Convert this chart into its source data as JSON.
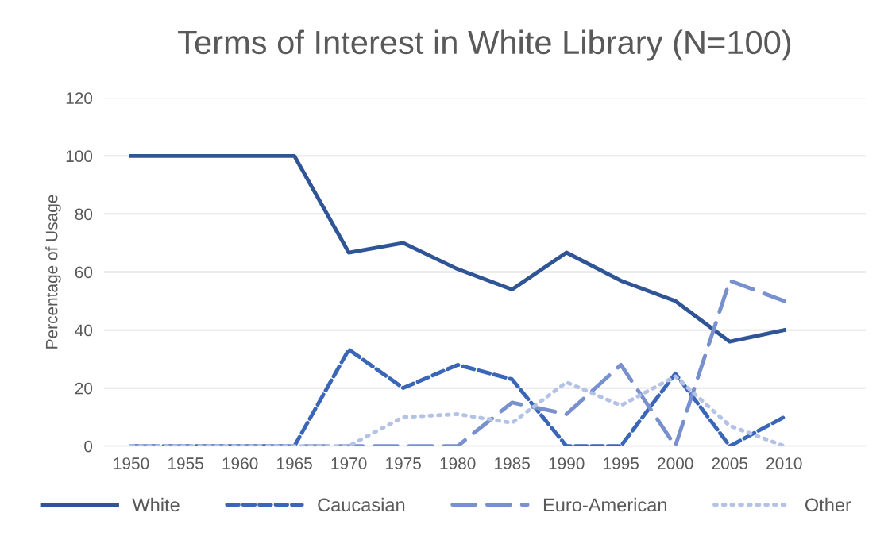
{
  "chart_data": {
    "type": "line",
    "title": "Terms of Interest in White Library (N=100)",
    "ylabel": "Percentage of Usage",
    "categories": [
      "1950",
      "1955",
      "1960",
      "1965",
      "1970",
      "1975",
      "1980",
      "1985",
      "1990",
      "1995",
      "2000",
      "2005",
      "2010",
      null
    ],
    "series": [
      {
        "name": "White",
        "color": "#2f5597",
        "line_style": "solid",
        "values": [
          100,
          100,
          100,
          100,
          66.7,
          70,
          61,
          54,
          66.7,
          57,
          50,
          36,
          40,
          null
        ]
      },
      {
        "name": "Caucasian",
        "color": "#3a66b8",
        "line_style": "dashed",
        "values": [
          0,
          0,
          0,
          0,
          33.3,
          20,
          28,
          23,
          0,
          0,
          25,
          0,
          10,
          null
        ]
      },
      {
        "name": "Euro-American",
        "color": "#7990cf",
        "line_style": "longdash",
        "values": [
          0,
          0,
          0,
          0,
          0,
          0,
          0,
          15,
          11,
          28,
          0,
          57,
          50,
          null
        ]
      },
      {
        "name": "Other",
        "color": "#b4c2e6",
        "line_style": "dotted",
        "values": [
          0,
          0,
          0,
          0,
          0,
          10,
          11,
          8,
          22,
          14,
          24,
          7,
          0,
          null
        ]
      }
    ],
    "ylim": [
      0,
      120
    ],
    "yticks": [
      0,
      20,
      40,
      60,
      80,
      100,
      120
    ],
    "grid": "y",
    "legend": "bottom",
    "marker": "none"
  }
}
